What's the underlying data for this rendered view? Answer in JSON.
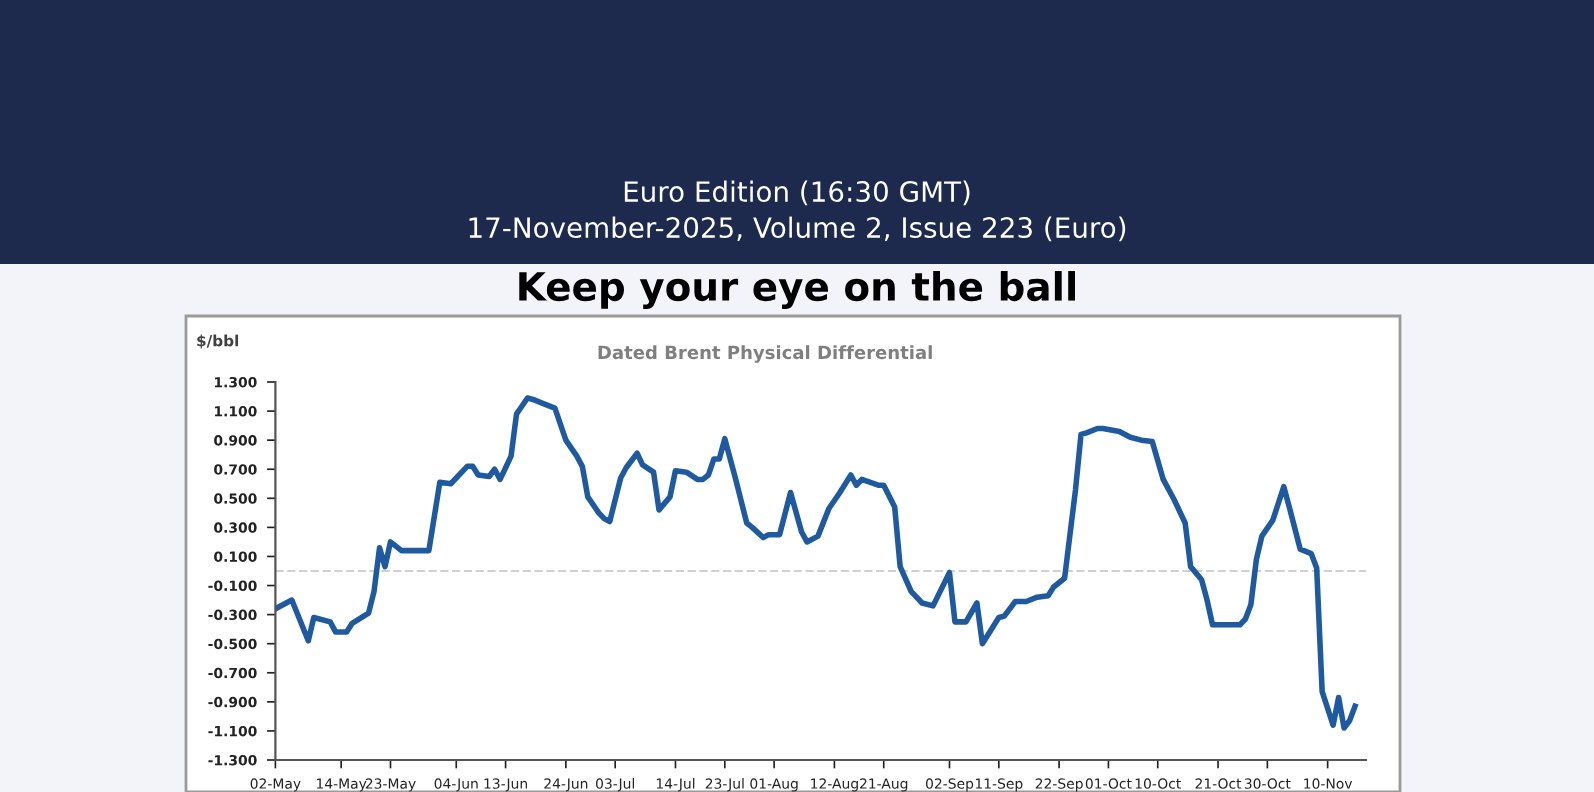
{
  "chart_data": {
    "type": "line",
    "title": "Keep your eye on the ball",
    "subtitle": "Dated Brent Physical Differential",
    "ylabel": "$/bbl",
    "annotations": [
      "Euro Edition (16:30 GMT)",
      "17-November-2025, Volume 2, Issue 223 (Euro)"
    ],
    "series": [
      {
        "color": "#1f5aa0",
        "x": [
          "2025-05-02",
          "2025-05-05",
          "2025-05-08",
          "2025-05-09",
          "2025-05-12",
          "2025-05-13",
          "2025-05-15",
          "2025-05-16",
          "2025-05-19",
          "2025-05-20",
          "2025-05-21",
          "2025-05-22",
          "2025-05-23",
          "2025-05-25",
          "2025-05-30",
          "2025-06-01",
          "2025-06-03",
          "2025-06-06",
          "2025-06-07",
          "2025-06-08",
          "2025-06-10",
          "2025-06-11",
          "2025-06-12",
          "2025-06-14",
          "2025-06-15",
          "2025-06-17",
          "2025-06-18",
          "2025-06-20",
          "2025-06-22",
          "2025-06-24",
          "2025-06-26",
          "2025-06-27",
          "2025-06-28",
          "2025-06-30",
          "2025-07-01",
          "2025-07-02",
          "2025-07-04",
          "2025-07-05",
          "2025-07-07",
          "2025-07-08",
          "2025-07-10",
          "2025-07-11",
          "2025-07-13",
          "2025-07-14",
          "2025-07-16",
          "2025-07-18",
          "2025-07-19",
          "2025-07-20",
          "2025-07-21",
          "2025-07-22",
          "2025-07-23",
          "2025-07-25",
          "2025-07-27",
          "2025-07-28",
          "2025-07-30",
          "2025-07-31",
          "2025-08-02",
          "2025-08-04",
          "2025-08-06",
          "2025-08-07",
          "2025-08-09",
          "2025-08-11",
          "2025-08-13",
          "2025-08-15",
          "2025-08-16",
          "2025-08-17",
          "2025-08-20",
          "2025-08-21",
          "2025-08-23",
          "2025-08-24",
          "2025-08-26",
          "2025-08-28",
          "2025-08-30",
          "2025-09-02",
          "2025-09-03",
          "2025-09-05",
          "2025-09-07",
          "2025-09-08",
          "2025-09-10",
          "2025-09-11",
          "2025-09-12",
          "2025-09-14",
          "2025-09-16",
          "2025-09-18",
          "2025-09-20",
          "2025-09-21",
          "2025-09-23",
          "2025-09-25",
          "2025-09-26",
          "2025-09-27",
          "2025-09-29",
          "2025-09-30",
          "2025-10-03",
          "2025-10-05",
          "2025-10-07",
          "2025-10-09",
          "2025-10-11",
          "2025-10-13",
          "2025-10-15",
          "2025-10-16",
          "2025-10-18",
          "2025-10-19",
          "2025-10-20",
          "2025-10-25",
          "2025-10-26",
          "2025-10-27",
          "2025-10-28",
          "2025-10-29",
          "2025-10-31",
          "2025-11-02",
          "2025-11-03",
          "2025-11-05",
          "2025-11-07",
          "2025-11-08",
          "2025-11-09",
          "2025-11-11",
          "2025-11-12",
          "2025-11-13",
          "2025-11-14",
          "2025-11-15"
        ],
        "values": [
          -0.26,
          -0.2,
          -0.48,
          -0.32,
          -0.35,
          -0.42,
          -0.42,
          -0.36,
          -0.29,
          -0.14,
          0.16,
          0.03,
          0.2,
          0.14,
          0.14,
          0.61,
          0.6,
          0.72,
          0.72,
          0.66,
          0.65,
          0.7,
          0.63,
          0.79,
          1.08,
          1.19,
          1.18,
          1.15,
          1.12,
          0.9,
          0.79,
          0.72,
          0.51,
          0.4,
          0.36,
          0.34,
          0.64,
          0.71,
          0.81,
          0.73,
          0.68,
          0.42,
          0.51,
          0.69,
          0.68,
          0.63,
          0.63,
          0.66,
          0.77,
          0.77,
          0.91,
          0.63,
          0.33,
          0.3,
          0.23,
          0.25,
          0.25,
          0.54,
          0.27,
          0.2,
          0.24,
          0.43,
          0.54,
          0.66,
          0.59,
          0.63,
          0.59,
          0.59,
          0.44,
          0.03,
          -0.14,
          -0.22,
          -0.24,
          -0.01,
          -0.35,
          -0.35,
          -0.22,
          -0.5,
          -0.38,
          -0.32,
          -0.31,
          -0.21,
          -0.21,
          -0.18,
          -0.17,
          -0.11,
          -0.05,
          0.56,
          0.94,
          0.95,
          0.98,
          0.98,
          0.96,
          0.92,
          0.9,
          0.89,
          0.63,
          0.49,
          0.33,
          0.03,
          -0.06,
          -0.2,
          -0.37,
          -0.37,
          -0.33,
          -0.23,
          0.08,
          0.24,
          0.35,
          0.58,
          0.44,
          0.15,
          0.12,
          0.02,
          -0.83,
          -1.06,
          -0.87,
          -1.08,
          -1.03,
          -0.93
        ]
      }
    ],
    "xlim": [
      "2025-05-02",
      "2025-11-17"
    ],
    "xticks": [
      {
        "value": "2025-05-02",
        "label": "02-May"
      },
      {
        "value": "2025-05-14",
        "label": "14-May"
      },
      {
        "value": "2025-05-23",
        "label": "23-May"
      },
      {
        "value": "2025-06-04",
        "label": "04-Jun"
      },
      {
        "value": "2025-06-13",
        "label": "13-Jun"
      },
      {
        "value": "2025-06-24",
        "label": "24-Jun"
      },
      {
        "value": "2025-07-03",
        "label": "03-Jul"
      },
      {
        "value": "2025-07-14",
        "label": "14-Jul"
      },
      {
        "value": "2025-07-23",
        "label": "23-Jul"
      },
      {
        "value": "2025-08-01",
        "label": "01-Aug"
      },
      {
        "value": "2025-08-12",
        "label": "12-Aug"
      },
      {
        "value": "2025-08-21",
        "label": "21-Aug"
      },
      {
        "value": "2025-09-02",
        "label": "02-Sep"
      },
      {
        "value": "2025-09-11",
        "label": "11-Sep"
      },
      {
        "value": "2025-09-22",
        "label": "22-Sep"
      },
      {
        "value": "2025-10-01",
        "label": "01-Oct"
      },
      {
        "value": "2025-10-10",
        "label": "10-Oct"
      },
      {
        "value": "2025-10-21",
        "label": "21-Oct"
      },
      {
        "value": "2025-10-30",
        "label": "30-Oct"
      },
      {
        "value": "2025-11-10",
        "label": "10-Nov"
      }
    ],
    "ylim": [
      -1.3,
      1.3
    ],
    "yticks": [
      {
        "value": -1.3,
        "label": "-1.300"
      },
      {
        "value": -1.1,
        "label": "-1.100"
      },
      {
        "value": -0.9,
        "label": "-0.900"
      },
      {
        "value": -0.7,
        "label": "-0.700"
      },
      {
        "value": -0.5,
        "label": "-0.500"
      },
      {
        "value": -0.3,
        "label": "-0.300"
      },
      {
        "value": -0.1,
        "label": "-0.100"
      },
      {
        "value": 0.1,
        "label": "0.100"
      },
      {
        "value": 0.3,
        "label": "0.300"
      },
      {
        "value": 0.5,
        "label": "0.500"
      },
      {
        "value": 0.7,
        "label": "0.700"
      },
      {
        "value": 0.9,
        "label": "0.900"
      },
      {
        "value": 1.1,
        "label": "1.100"
      },
      {
        "value": 1.3,
        "label": "1.300"
      }
    ],
    "ref_lines": [
      {
        "axis": "y",
        "value": 0,
        "color": "#d0d0d0",
        "line_style": "dashed"
      }
    ],
    "grid": false,
    "legend": false,
    "marker": "none",
    "line_style": "solid"
  }
}
